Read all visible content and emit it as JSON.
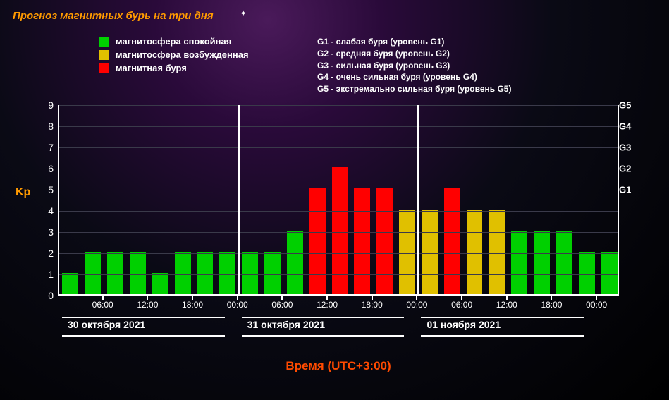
{
  "title": "Прогноз магнитных бурь на три дня",
  "legend": {
    "items": [
      {
        "color": "#00d000",
        "label": "магнитосфера спокойная"
      },
      {
        "color": "#e0c000",
        "label": "магнитосфера возбужденная"
      },
      {
        "color": "#ff0000",
        "label": "магнитная буря"
      }
    ],
    "g_scale": [
      "G1 - слабая буря (уровень G1)",
      "G2 - средняя буря (уровень G2)",
      "G3 - сильная буря (уровень G3)",
      "G4 - очень сильная буря (уровень G4)",
      "G5 - экстремально сильная буря (уровень G5)"
    ]
  },
  "chart": {
    "type": "bar",
    "y_label": "Kр",
    "ylim": [
      0,
      9
    ],
    "ytick_step": 1,
    "y_ticks": [
      "0",
      "1",
      "2",
      "3",
      "4",
      "5",
      "6",
      "7",
      "8",
      "9"
    ],
    "g_ticks": [
      {
        "label": "G1",
        "kp": 5
      },
      {
        "label": "G2",
        "kp": 6
      },
      {
        "label": "G3",
        "kp": 7
      },
      {
        "label": "G4",
        "kp": 8
      },
      {
        "label": "G5",
        "kp": 9
      }
    ],
    "x_ticks": [
      "06:00",
      "12:00",
      "18:00",
      "00:00",
      "06:00",
      "12:00",
      "18:00",
      "00:00",
      "06:00",
      "12:00",
      "18:00",
      "00:00"
    ],
    "x_axis_title": "Время (UTC+3:00)",
    "dates": [
      "30 октября 2021",
      "31 октября 2021",
      "01 ноября 2021"
    ],
    "colors": {
      "calm": "#00d000",
      "excited": "#e0c000",
      "storm": "#ff0000",
      "grid": "#3a3a4a",
      "axis": "#ffffff",
      "bg_transparent": true
    },
    "bar_width_ratio": 0.72,
    "bars": [
      {
        "kp": 1
      },
      {
        "kp": 2
      },
      {
        "kp": 2
      },
      {
        "kp": 2
      },
      {
        "kp": 1
      },
      {
        "kp": 2
      },
      {
        "kp": 2
      },
      {
        "kp": 2
      },
      {
        "kp": 2
      },
      {
        "kp": 2
      },
      {
        "kp": 3
      },
      {
        "kp": 5
      },
      {
        "kp": 6
      },
      {
        "kp": 5
      },
      {
        "kp": 5
      },
      {
        "kp": 4
      },
      {
        "kp": 4
      },
      {
        "kp": 5
      },
      {
        "kp": 4
      },
      {
        "kp": 4
      },
      {
        "kp": 3
      },
      {
        "kp": 3
      },
      {
        "kp": 3
      },
      {
        "kp": 2
      },
      {
        "kp": 2
      }
    ]
  }
}
